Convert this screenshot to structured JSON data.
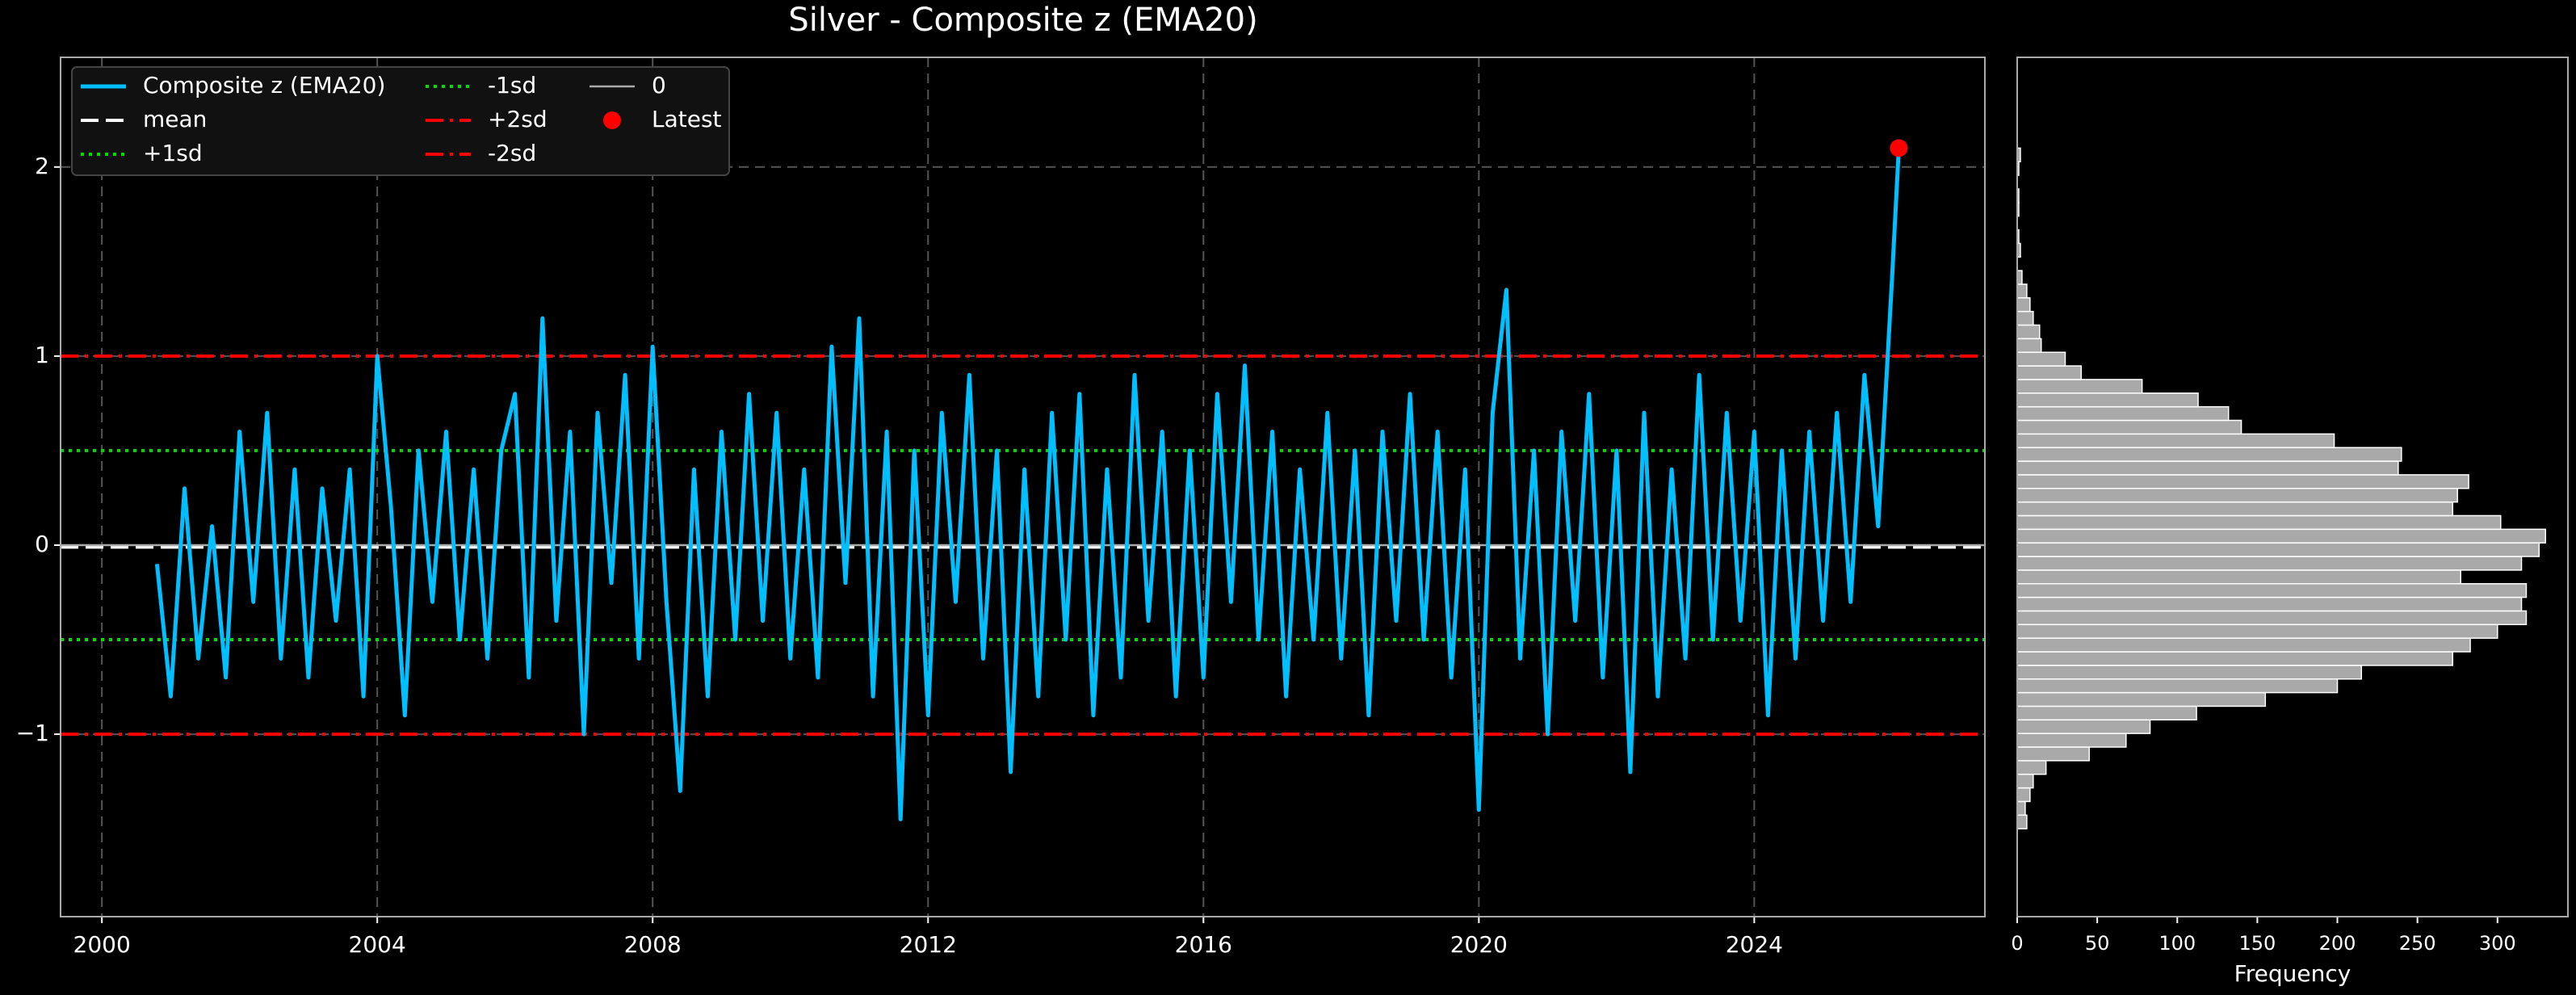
{
  "chart_data": [
    {
      "type": "line",
      "title": "Silver - Composite z (EMA20)",
      "x": [
        2000.8,
        2001.0,
        2001.2,
        2001.4,
        2001.6,
        2001.8,
        2002.0,
        2002.2,
        2002.4,
        2002.6,
        2002.8,
        2003.0,
        2003.2,
        2003.4,
        2003.6,
        2003.8,
        2004.0,
        2004.2,
        2004.4,
        2004.6,
        2004.8,
        2005.0,
        2005.2,
        2005.4,
        2005.6,
        2005.8,
        2006.0,
        2006.2,
        2006.4,
        2006.6,
        2006.8,
        2007.0,
        2007.2,
        2007.4,
        2007.6,
        2007.8,
        2008.0,
        2008.2,
        2008.4,
        2008.6,
        2008.8,
        2009.0,
        2009.2,
        2009.4,
        2009.6,
        2009.8,
        2010.0,
        2010.2,
        2010.4,
        2010.6,
        2010.8,
        2011.0,
        2011.2,
        2011.4,
        2011.6,
        2011.8,
        2012.0,
        2012.2,
        2012.4,
        2012.6,
        2012.8,
        2013.0,
        2013.2,
        2013.4,
        2013.6,
        2013.8,
        2014.0,
        2014.2,
        2014.4,
        2014.6,
        2014.8,
        2015.0,
        2015.2,
        2015.4,
        2015.6,
        2015.8,
        2016.0,
        2016.2,
        2016.4,
        2016.6,
        2016.8,
        2017.0,
        2017.2,
        2017.4,
        2017.6,
        2017.8,
        2018.0,
        2018.2,
        2018.4,
        2018.6,
        2018.8,
        2019.0,
        2019.2,
        2019.4,
        2019.6,
        2019.8,
        2020.0,
        2020.2,
        2020.4,
        2020.6,
        2020.8,
        2021.0,
        2021.2,
        2021.4,
        2021.6,
        2021.8,
        2022.0,
        2022.2,
        2022.4,
        2022.6,
        2022.8,
        2023.0,
        2023.2,
        2023.4,
        2023.6,
        2023.8,
        2024.0,
        2024.2,
        2024.4,
        2024.6,
        2024.8,
        2025.0,
        2025.2,
        2025.4,
        2025.6,
        2025.8,
        2026.0,
        2026.1
      ],
      "series": [
        {
          "name": "Composite z (EMA20)",
          "color": "#00bfff",
          "values": [
            -0.1,
            -0.8,
            0.3,
            -0.6,
            0.1,
            -0.7,
            0.6,
            -0.3,
            0.7,
            -0.6,
            0.4,
            -0.7,
            0.3,
            -0.4,
            0.4,
            -0.8,
            1.0,
            0.2,
            -0.9,
            0.5,
            -0.3,
            0.6,
            -0.5,
            0.4,
            -0.6,
            0.5,
            0.8,
            -0.7,
            1.2,
            -0.4,
            0.6,
            -1.0,
            0.7,
            -0.2,
            0.9,
            -0.6,
            1.05,
            -0.3,
            -1.3,
            0.4,
            -0.8,
            0.6,
            -0.5,
            0.8,
            -0.4,
            0.7,
            -0.6,
            0.4,
            -0.7,
            1.05,
            -0.2,
            1.2,
            -0.8,
            0.6,
            -1.45,
            0.5,
            -0.9,
            0.7,
            -0.3,
            0.9,
            -0.6,
            0.5,
            -1.2,
            0.4,
            -0.8,
            0.7,
            -0.5,
            0.8,
            -0.9,
            0.4,
            -0.7,
            0.9,
            -0.4,
            0.6,
            -0.8,
            0.5,
            -0.7,
            0.8,
            -0.3,
            0.95,
            -0.5,
            0.6,
            -0.8,
            0.4,
            -0.5,
            0.7,
            -0.6,
            0.5,
            -0.9,
            0.6,
            -0.4,
            0.8,
            -0.5,
            0.6,
            -0.7,
            0.4,
            -1.4,
            0.7,
            1.35,
            -0.6,
            0.5,
            -1.0,
            0.6,
            -0.4,
            0.8,
            -0.7,
            0.5,
            -1.2,
            0.7,
            -0.8,
            0.4,
            -0.6,
            0.9,
            -0.5,
            0.7,
            -0.4,
            0.6,
            -0.9,
            0.5,
            -0.6,
            0.6,
            -0.4,
            0.7,
            -0.3,
            0.9,
            0.1,
            1.4,
            2.1
          ]
        }
      ],
      "hlines": [
        {
          "name": "mean",
          "value": -0.01,
          "color": "#ffffff",
          "style": "dashed"
        },
        {
          "name": "+1sd",
          "value": 0.5,
          "color": "#00dd00",
          "style": "dotted"
        },
        {
          "name": "-1sd",
          "value": -0.5,
          "color": "#00dd00",
          "style": "dotted"
        },
        {
          "name": "+2sd",
          "value": 1.0,
          "color": "#ff0000",
          "style": "dashdot"
        },
        {
          "name": "-2sd",
          "value": -1.0,
          "color": "#ff0000",
          "style": "dashdot"
        },
        {
          "name": "0",
          "value": 0,
          "color": "#aaaaaa",
          "style": "solid"
        }
      ],
      "latest": {
        "name": "Latest",
        "x": 2026.1,
        "value": 2.1,
        "color": "#ff0000"
      },
      "xlim": [
        1999.4,
        2027.35
      ],
      "xticks": [
        2000,
        2004,
        2008,
        2012,
        2016,
        2020,
        2024
      ],
      "ylim": [
        -1.965,
        2.58
      ],
      "yticks": [
        {
          "value": -1,
          "label": "−1"
        },
        0,
        1,
        2
      ],
      "grid": true,
      "legend": "upper left"
    },
    {
      "type": "histogram",
      "xlabel": "Frequency",
      "color": "#a9a9a9",
      "bins": [
        -1.5,
        -1.428,
        -1.356,
        -1.284,
        -1.212,
        -1.14,
        -1.068,
        -0.996,
        -0.924,
        -0.852,
        -0.78,
        -0.708,
        -0.636,
        -0.564,
        -0.492,
        -0.42,
        -0.348,
        -0.276,
        -0.204,
        -0.132,
        -0.06,
        0.012,
        0.084,
        0.156,
        0.228,
        0.3,
        0.372,
        0.444,
        0.516,
        0.588,
        0.66,
        0.732,
        0.804,
        0.876,
        0.948,
        1.02,
        1.092,
        1.164,
        1.236,
        1.308,
        1.38,
        1.452,
        1.524,
        1.596,
        1.668,
        1.74,
        1.812,
        1.884,
        1.956,
        2.028,
        2.1
      ],
      "counts": [
        6,
        5,
        8,
        10,
        18,
        45,
        68,
        83,
        112,
        155,
        200,
        215,
        272,
        283,
        300,
        318,
        315,
        318,
        277,
        315,
        326,
        330,
        302,
        272,
        275,
        282,
        238,
        240,
        198,
        140,
        132,
        113,
        78,
        40,
        30,
        15,
        14,
        10,
        8,
        6,
        3,
        0,
        2,
        1,
        0,
        1,
        1,
        0,
        1,
        2
      ],
      "xlim": [
        0,
        344
      ],
      "xticks": [
        0,
        50,
        100,
        150,
        200,
        250,
        300
      ]
    }
  ]
}
